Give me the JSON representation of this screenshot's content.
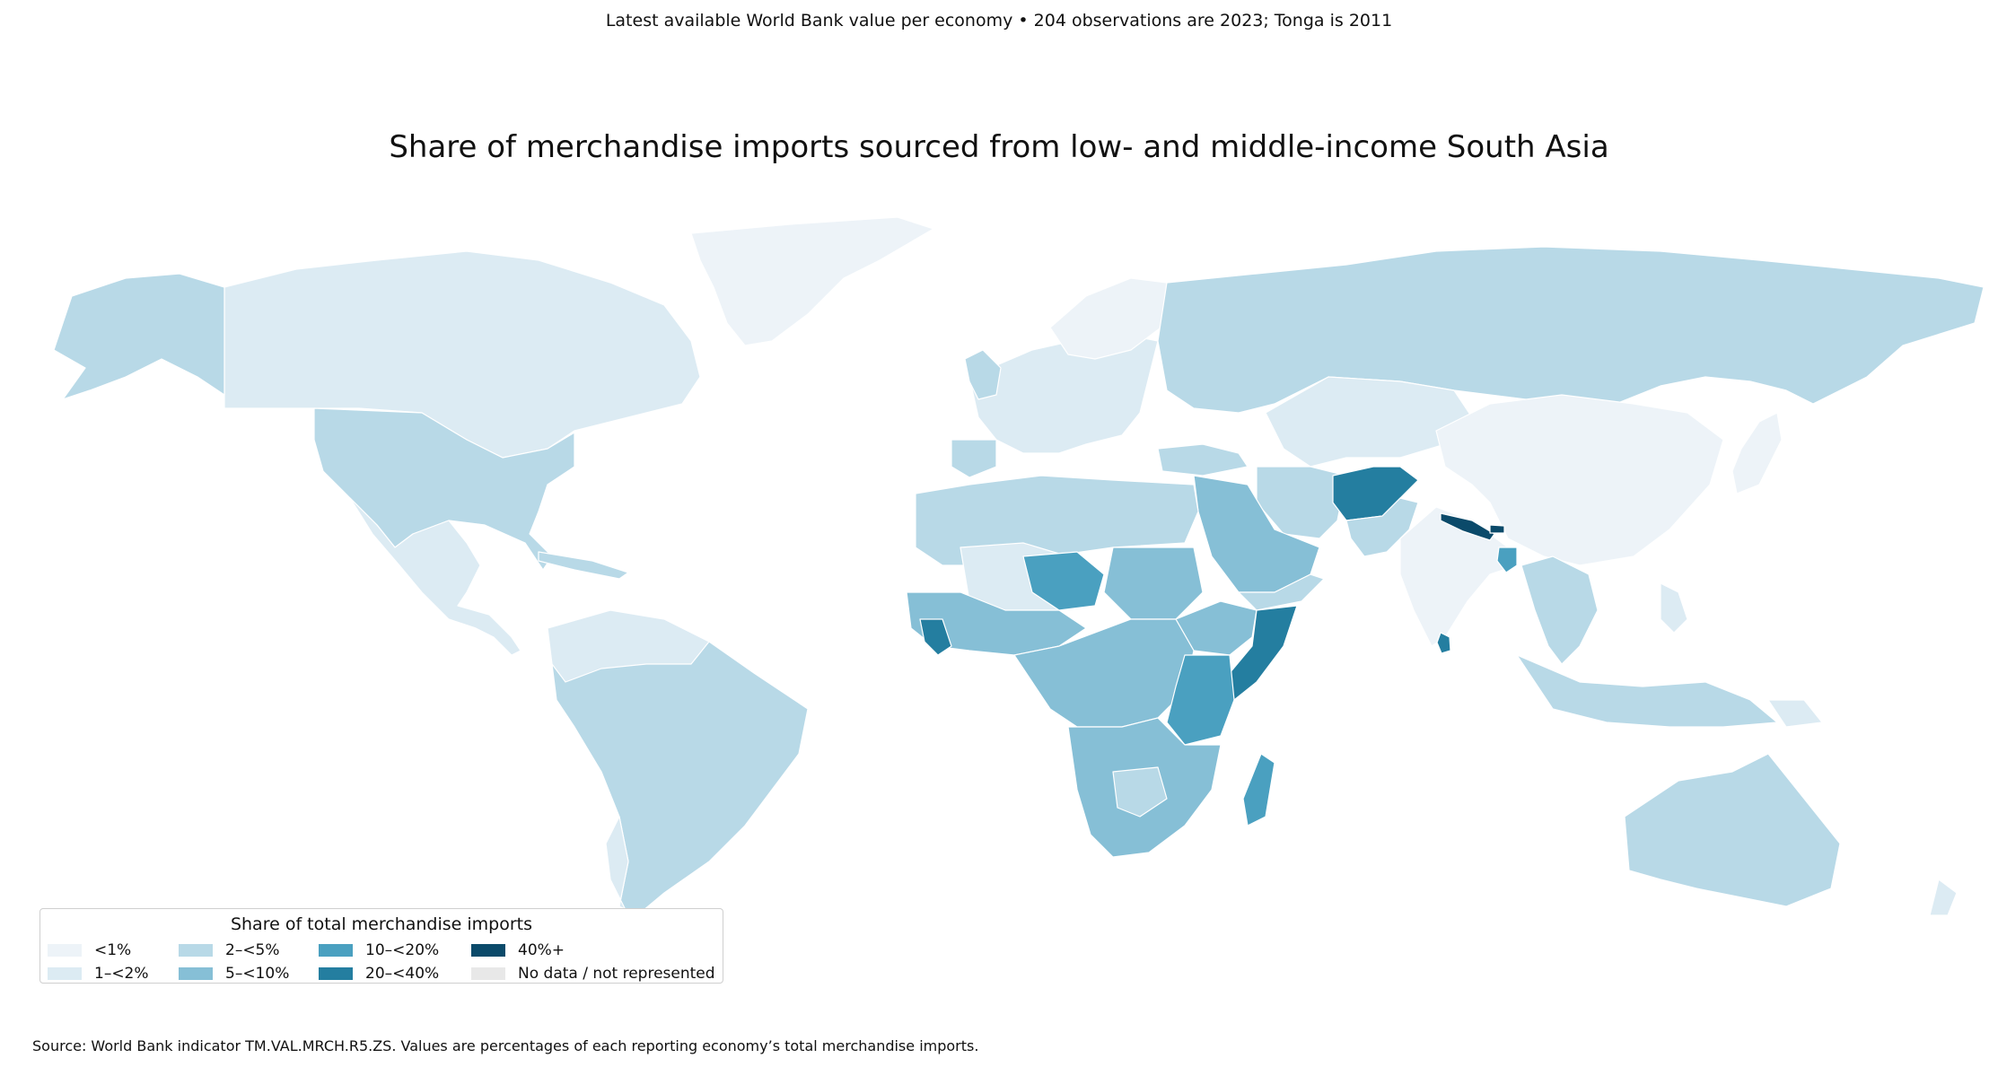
{
  "subtitle": "Latest available World Bank value per economy • 204 observations are 2023; Tonga is 2011",
  "title": "Share of merchandise imports sourced from low- and middle-income South Asia",
  "legend": {
    "title": "Share of total merchandise imports",
    "items": [
      {
        "label": "<1%",
        "color": "#edf3f8"
      },
      {
        "label": "1–<2%",
        "color": "#dcebf3"
      },
      {
        "label": "2–<5%",
        "color": "#b8d9e7"
      },
      {
        "label": "5–<10%",
        "color": "#86bfd6"
      },
      {
        "label": "10–<20%",
        "color": "#4aa0c0"
      },
      {
        "label": "20–<40%",
        "color": "#247ea0"
      },
      {
        "label": "40%+",
        "color": "#0b4a6a"
      },
      {
        "label": "No data / not represented",
        "color": "#e8e8e8"
      }
    ]
  },
  "source": "Source: World Bank indicator TM.VAL.MRCH.R5.ZS. Values are percentages of each reporting economy’s total merchandise imports."
}
